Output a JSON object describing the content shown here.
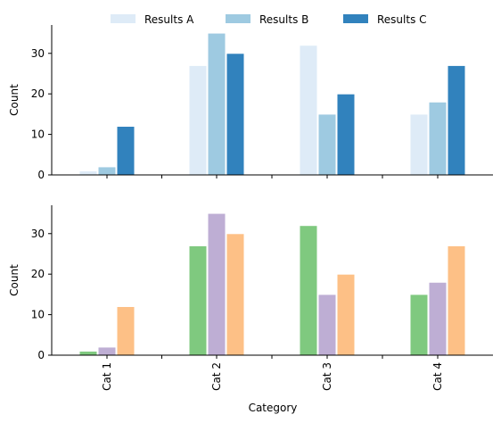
{
  "chart_data": [
    {
      "type": "bar",
      "categories": [
        "Cat 1",
        "Cat 2",
        "Cat 3",
        "Cat 4"
      ],
      "series": [
        {
          "name": "Results A",
          "values": [
            1,
            27,
            32,
            15
          ],
          "color": "#deebf7"
        },
        {
          "name": "Results B",
          "values": [
            2,
            35,
            15,
            18
          ],
          "color": "#9ecae1"
        },
        {
          "name": "Results C",
          "values": [
            12,
            30,
            20,
            27
          ],
          "color": "#3182bd"
        }
      ],
      "xlabel": "",
      "ylabel": "Count",
      "ylim": [
        0,
        37
      ],
      "yticks": [
        0,
        10,
        20,
        30
      ],
      "legend": "top-center",
      "grid": false
    },
    {
      "type": "bar",
      "categories": [
        "Cat 1",
        "Cat 2",
        "Cat 3",
        "Cat 4"
      ],
      "series": [
        {
          "values": [
            1,
            27,
            32,
            15
          ],
          "color": "#7fc97f"
        },
        {
          "values": [
            2,
            35,
            15,
            18
          ],
          "color": "#beaed4"
        },
        {
          "values": [
            12,
            30,
            20,
            27
          ],
          "color": "#fdc086"
        }
      ],
      "xlabel": "Category",
      "ylabel": "Count",
      "ylim": [
        0,
        37
      ],
      "yticks": [
        0,
        10,
        20,
        30
      ],
      "grid": false
    }
  ]
}
